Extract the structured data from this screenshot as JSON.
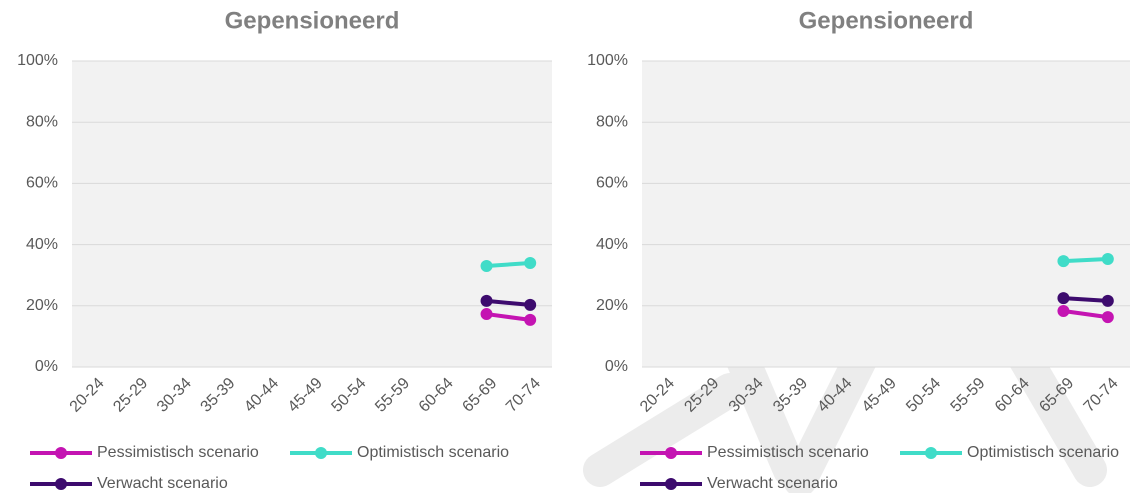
{
  "chart_data": [
    {
      "type": "line",
      "title": "Gepensioneerd",
      "categories": [
        "20-24",
        "25-29",
        "30-34",
        "35-39",
        "40-44",
        "45-49",
        "50-54",
        "55-59",
        "60-64",
        "65-69",
        "70-74"
      ],
      "series": [
        {
          "name": "Pessimistisch scenario",
          "color": "#c414b2",
          "values": [
            null,
            null,
            null,
            null,
            null,
            null,
            null,
            null,
            null,
            17.3,
            15.4
          ]
        },
        {
          "name": "Optimistisch scenario",
          "color": "#40dcc8",
          "values": [
            null,
            null,
            null,
            null,
            null,
            null,
            null,
            null,
            null,
            33.0,
            34.0
          ]
        },
        {
          "name": "Verwacht scenario",
          "color": "#3d0b6e",
          "values": [
            null,
            null,
            null,
            null,
            null,
            null,
            null,
            null,
            null,
            21.6,
            20.3
          ]
        }
      ],
      "ylim": [
        0,
        100
      ],
      "yticks": [
        {
          "value": 0,
          "label": "0%"
        },
        {
          "value": 20,
          "label": "20%"
        },
        {
          "value": 40,
          "label": "40%"
        },
        {
          "value": 60,
          "label": "60%"
        },
        {
          "value": 80,
          "label": "80%"
        },
        {
          "value": 100,
          "label": "100%"
        }
      ],
      "grid": true,
      "legend": "bottom"
    },
    {
      "type": "line",
      "title": "Gepensioneerd",
      "categories": [
        "20-24",
        "25-29",
        "30-34",
        "35-39",
        "40-44",
        "45-49",
        "50-54",
        "55-59",
        "60-64",
        "65-69",
        "70-74"
      ],
      "series": [
        {
          "name": "Pessimistisch scenario",
          "color": "#c414b2",
          "values": [
            null,
            null,
            null,
            null,
            null,
            null,
            null,
            null,
            null,
            18.3,
            16.3
          ]
        },
        {
          "name": "Optimistisch scenario",
          "color": "#40dcc8",
          "values": [
            null,
            null,
            null,
            null,
            null,
            null,
            null,
            null,
            null,
            34.6,
            35.3
          ]
        },
        {
          "name": "Verwacht scenario",
          "color": "#3d0b6e",
          "values": [
            null,
            null,
            null,
            null,
            null,
            null,
            null,
            null,
            null,
            22.5,
            21.6
          ]
        }
      ],
      "ylim": [
        0,
        100
      ],
      "yticks": [
        {
          "value": 0,
          "label": "0%"
        },
        {
          "value": 20,
          "label": "20%"
        },
        {
          "value": 40,
          "label": "40%"
        },
        {
          "value": 60,
          "label": "60%"
        },
        {
          "value": 80,
          "label": "80%"
        },
        {
          "value": 100,
          "label": "100%"
        }
      ],
      "grid": true,
      "legend": "bottom"
    }
  ]
}
